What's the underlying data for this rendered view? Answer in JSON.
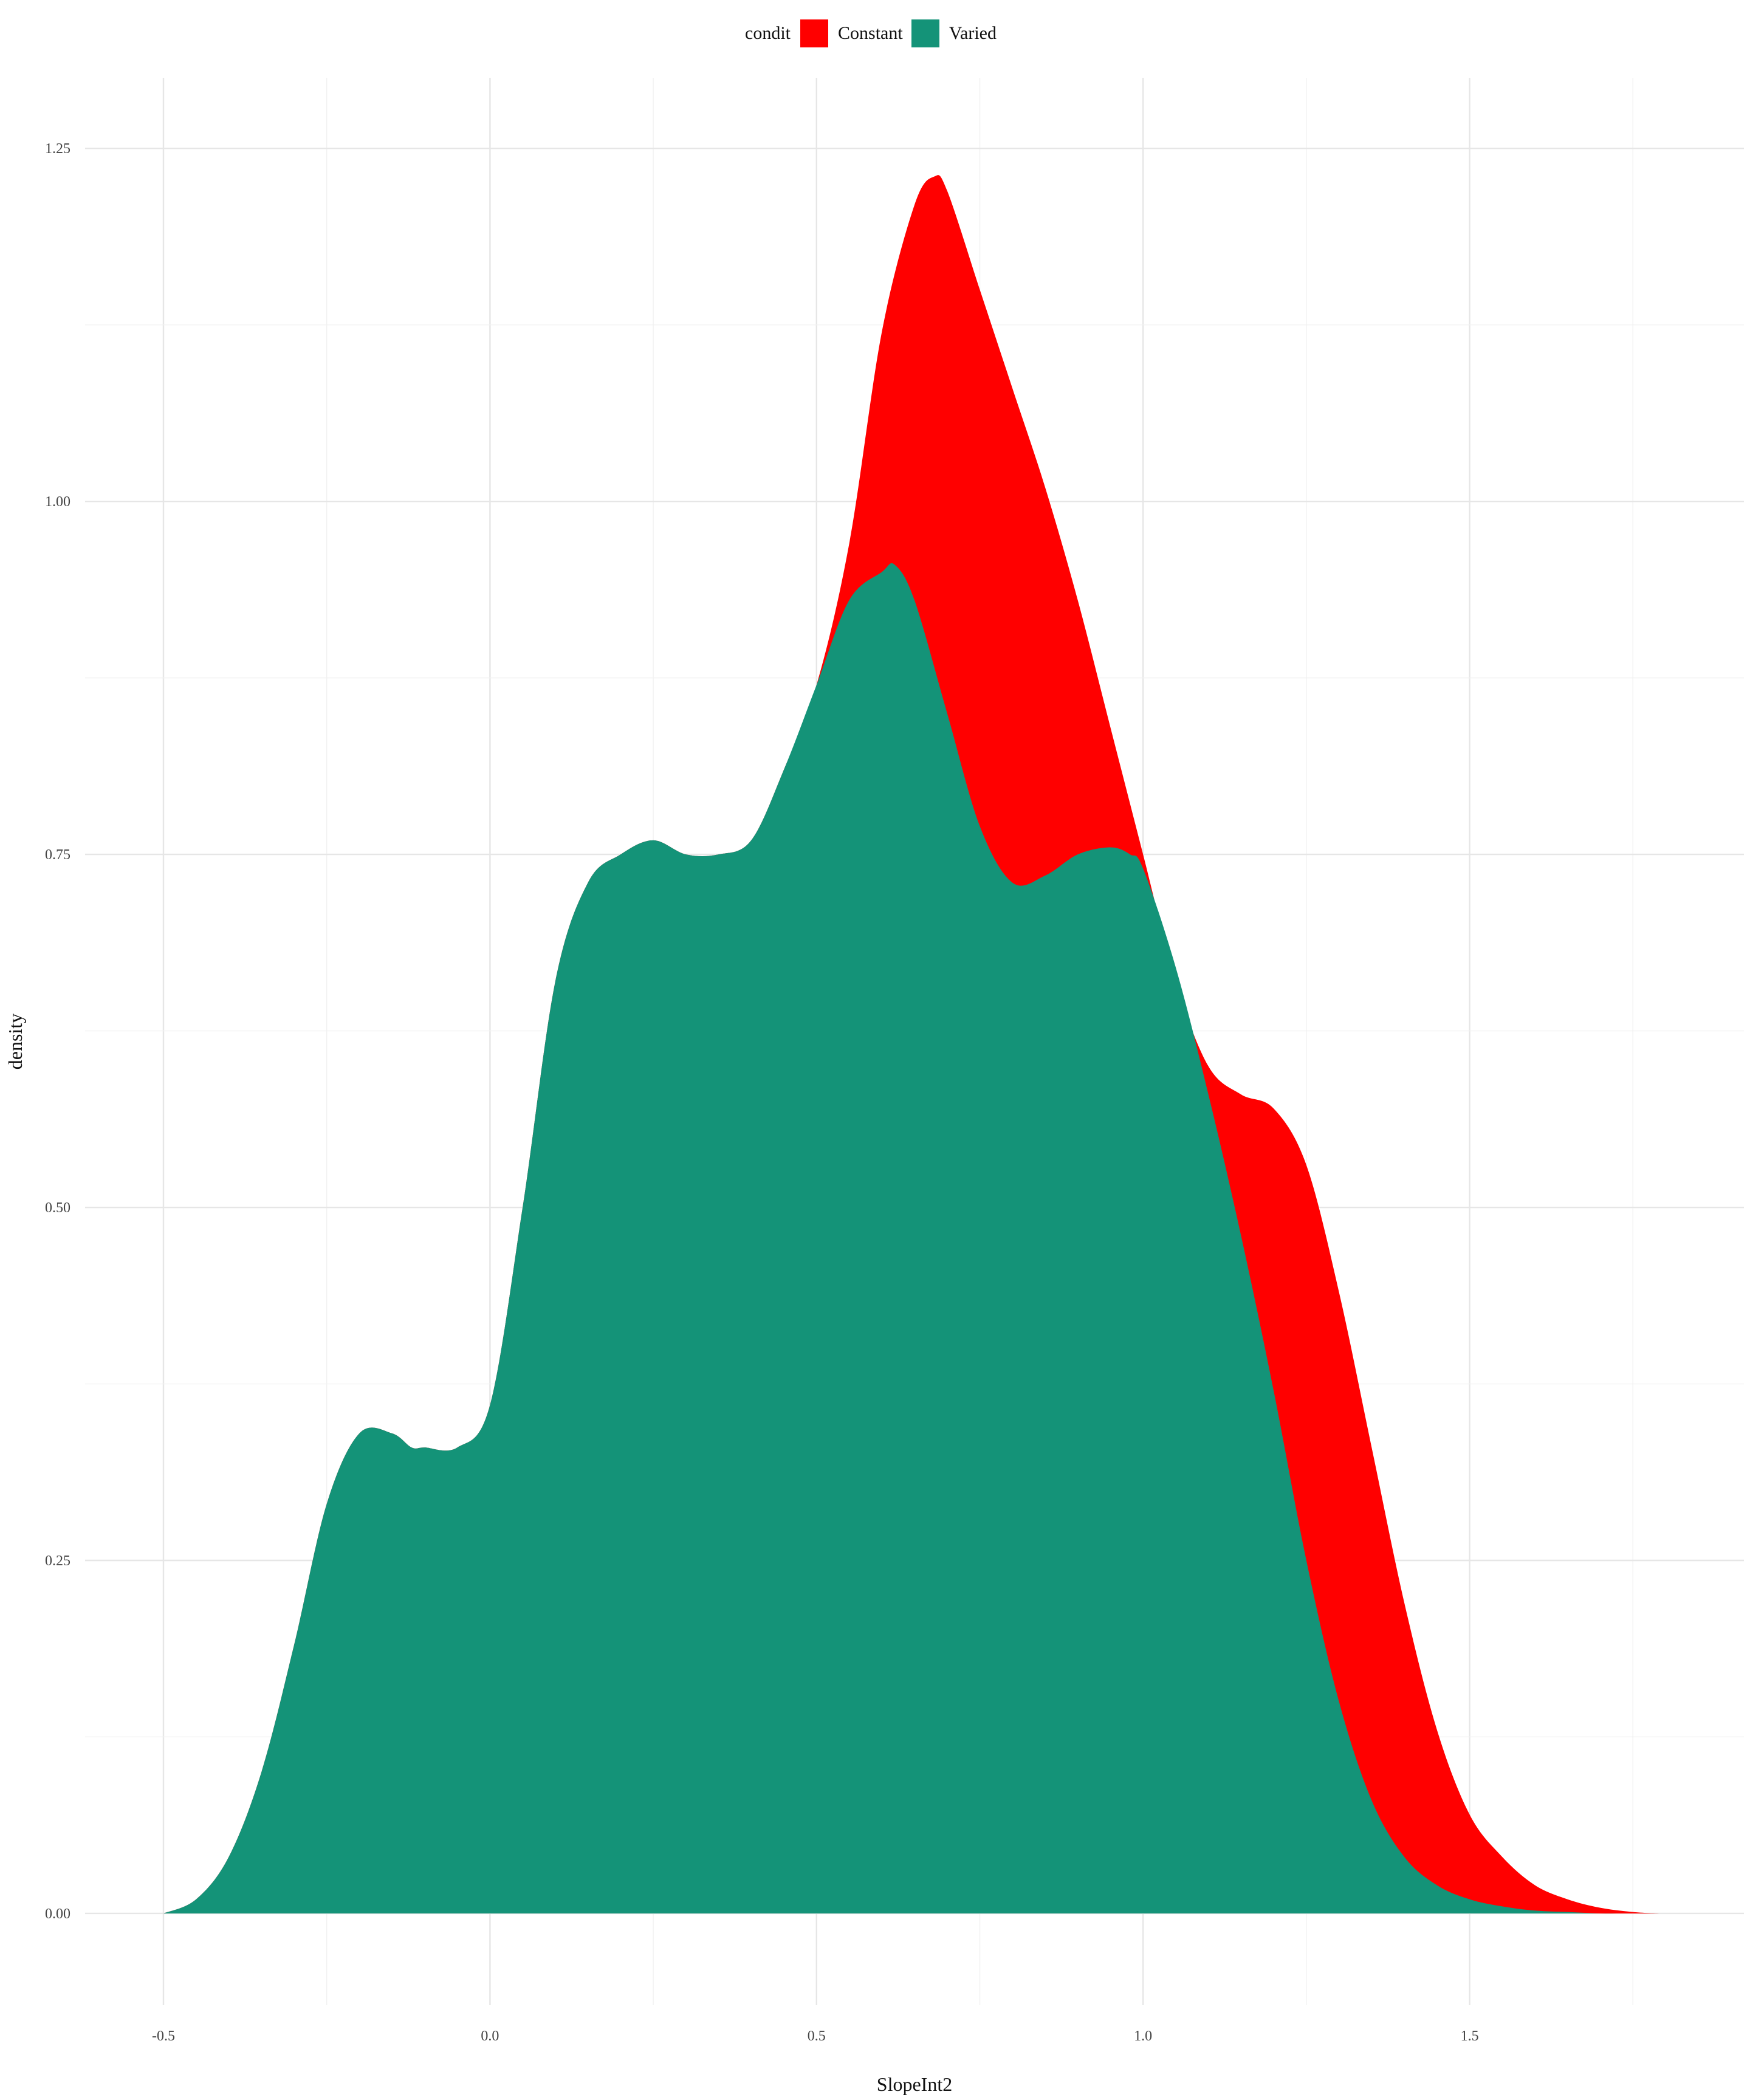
{
  "chart_data": {
    "type": "area",
    "xlabel": "SlopeInt2",
    "ylabel": "density",
    "xlim": [
      -0.62,
      1.92
    ],
    "ylim": [
      -0.065,
      1.3
    ],
    "x_ticks": [
      -0.5,
      0.0,
      0.5,
      1.0,
      1.5
    ],
    "x_tick_labels": [
      "-0.5",
      "0.0",
      "0.5",
      "1.0",
      "1.5"
    ],
    "y_ticks": [
      0.0,
      0.25,
      0.5,
      0.75,
      1.0,
      1.25
    ],
    "y_tick_labels": [
      "0.00",
      "0.25",
      "0.50",
      "0.75",
      "1.00",
      "1.25"
    ],
    "grid": true,
    "legend": {
      "title": "condit",
      "placement": "top-center"
    },
    "series": [
      {
        "name": "Constant",
        "color": "#FF0000",
        "x": [
          -0.5,
          -0.45,
          -0.4,
          -0.35,
          -0.3,
          -0.25,
          -0.2,
          -0.15,
          -0.12,
          -0.1,
          -0.05,
          0.0,
          0.05,
          0.1,
          0.15,
          0.2,
          0.25,
          0.3,
          0.35,
          0.4,
          0.45,
          0.5,
          0.55,
          0.6,
          0.65,
          0.68,
          0.7,
          0.75,
          0.8,
          0.85,
          0.9,
          0.95,
          1.0,
          1.05,
          1.1,
          1.15,
          1.2,
          1.25,
          1.3,
          1.35,
          1.4,
          1.45,
          1.5,
          1.55,
          1.6,
          1.65,
          1.7,
          1.75,
          1.79
        ],
        "values": [
          0.0,
          0.01,
          0.04,
          0.1,
          0.19,
          0.29,
          0.34,
          0.34,
          0.33,
          0.33,
          0.33,
          0.36,
          0.5,
          0.66,
          0.73,
          0.75,
          0.76,
          0.75,
          0.75,
          0.76,
          0.81,
          0.87,
          0.97,
          1.12,
          1.21,
          1.23,
          1.22,
          1.15,
          1.08,
          1.01,
          0.93,
          0.84,
          0.75,
          0.66,
          0.6,
          0.58,
          0.57,
          0.53,
          0.44,
          0.33,
          0.22,
          0.13,
          0.07,
          0.04,
          0.02,
          0.01,
          0.004,
          0.001,
          0.0
        ]
      },
      {
        "name": "Varied",
        "color": "#149378",
        "x": [
          -0.5,
          -0.45,
          -0.4,
          -0.35,
          -0.3,
          -0.25,
          -0.2,
          -0.15,
          -0.12,
          -0.1,
          -0.05,
          0.0,
          0.05,
          0.1,
          0.15,
          0.2,
          0.25,
          0.3,
          0.35,
          0.4,
          0.45,
          0.5,
          0.55,
          0.6,
          0.62,
          0.65,
          0.7,
          0.75,
          0.8,
          0.85,
          0.9,
          0.95,
          0.98,
          1.0,
          1.05,
          1.1,
          1.15,
          1.2,
          1.25,
          1.3,
          1.35,
          1.4,
          1.45,
          1.5,
          1.55,
          1.6,
          1.65,
          1.7,
          1.75,
          1.79
        ],
        "values": [
          0.0,
          0.01,
          0.04,
          0.1,
          0.19,
          0.29,
          0.34,
          0.34,
          0.33,
          0.33,
          0.33,
          0.36,
          0.5,
          0.66,
          0.73,
          0.75,
          0.76,
          0.75,
          0.75,
          0.76,
          0.81,
          0.87,
          0.93,
          0.95,
          0.955,
          0.93,
          0.85,
          0.77,
          0.73,
          0.735,
          0.75,
          0.755,
          0.75,
          0.74,
          0.67,
          0.58,
          0.48,
          0.37,
          0.25,
          0.15,
          0.08,
          0.04,
          0.02,
          0.01,
          0.005,
          0.002,
          0.001,
          0.0,
          0.0,
          0.0
        ]
      }
    ]
  }
}
